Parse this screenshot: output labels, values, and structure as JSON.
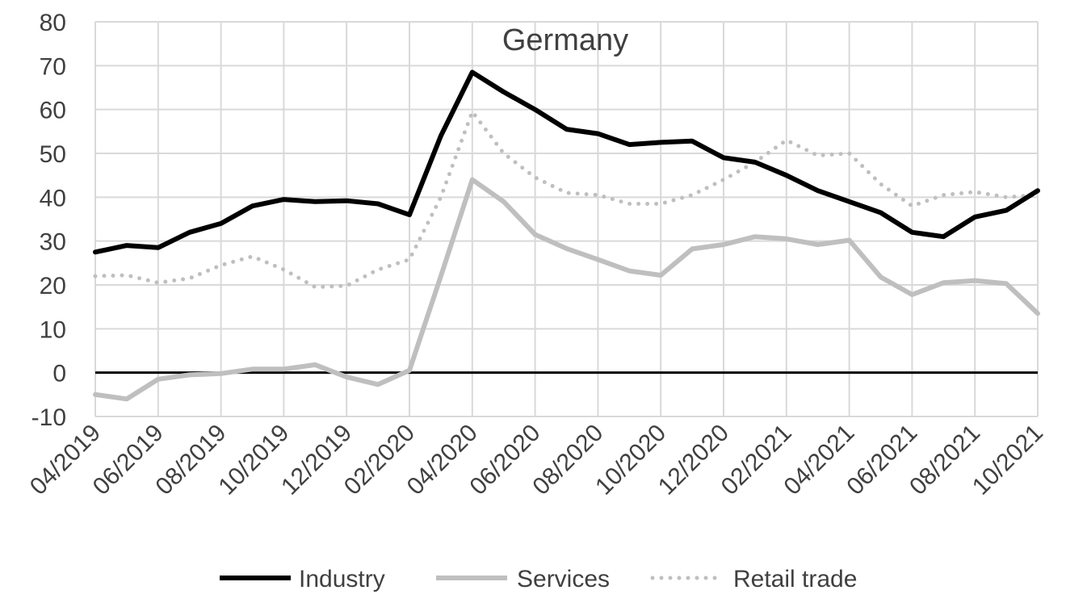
{
  "chart_data": {
    "type": "line",
    "title": "Germany",
    "xlabel": "",
    "ylabel": "",
    "ylim": [
      -10,
      80
    ],
    "yticks": [
      -10,
      0,
      10,
      20,
      30,
      40,
      50,
      60,
      70,
      80
    ],
    "grid": true,
    "legend_position": "bottom",
    "x": [
      "04/2019",
      "05/2019",
      "06/2019",
      "07/2019",
      "08/2019",
      "09/2019",
      "10/2019",
      "11/2019",
      "12/2019",
      "01/2020",
      "02/2020",
      "03/2020",
      "04/2020",
      "05/2020",
      "06/2020",
      "07/2020",
      "08/2020",
      "09/2020",
      "10/2020",
      "11/2020",
      "12/2020",
      "01/2021",
      "02/2021",
      "03/2021",
      "04/2021",
      "05/2021",
      "06/2021",
      "07/2021",
      "08/2021",
      "09/2021",
      "10/2021"
    ],
    "x_tick_labels": [
      "04/2019",
      "06/2019",
      "08/2019",
      "10/2019",
      "12/2019",
      "02/2020",
      "04/2020",
      "06/2020",
      "08/2020",
      "10/2020",
      "12/2020",
      "02/2021",
      "04/2021",
      "06/2021",
      "08/2021",
      "10/2021"
    ],
    "series": [
      {
        "name": "Industry",
        "color": "#000000",
        "style": "solid",
        "values": [
          27.5,
          29,
          28.5,
          32,
          34,
          38,
          39.5,
          39,
          39.2,
          38.5,
          36,
          54,
          68.5,
          64,
          60,
          55.5,
          54.5,
          52,
          52.5,
          52.8,
          49,
          48,
          45,
          41.5,
          39,
          36.5,
          32,
          31,
          35.5,
          37,
          41.5
        ]
      },
      {
        "name": "Services",
        "color": "#bfbfbf",
        "style": "solid",
        "values": [
          -5,
          -6,
          -1.5,
          -0.5,
          -0.2,
          0.8,
          0.8,
          1.8,
          -1,
          -2.7,
          0.5,
          22,
          44,
          39,
          31.5,
          28.3,
          25.8,
          23.2,
          22.2,
          28.2,
          29.2,
          31,
          30.5,
          29.2,
          30.2,
          21.8,
          17.8,
          20.5,
          21,
          20.3,
          13.5
        ]
      },
      {
        "name": "Retail trade",
        "color": "#bfbfbf",
        "style": "dotted",
        "values": [
          22,
          22.2,
          20.5,
          21.5,
          24.5,
          26.5,
          23.5,
          19.5,
          19.8,
          23.5,
          25.8,
          40,
          59.5,
          50,
          44.5,
          41,
          40.5,
          38.5,
          38.5,
          40.5,
          44,
          48,
          53,
          49.5,
          50,
          43,
          38,
          40.5,
          41.2,
          40,
          40.5
        ]
      }
    ]
  }
}
